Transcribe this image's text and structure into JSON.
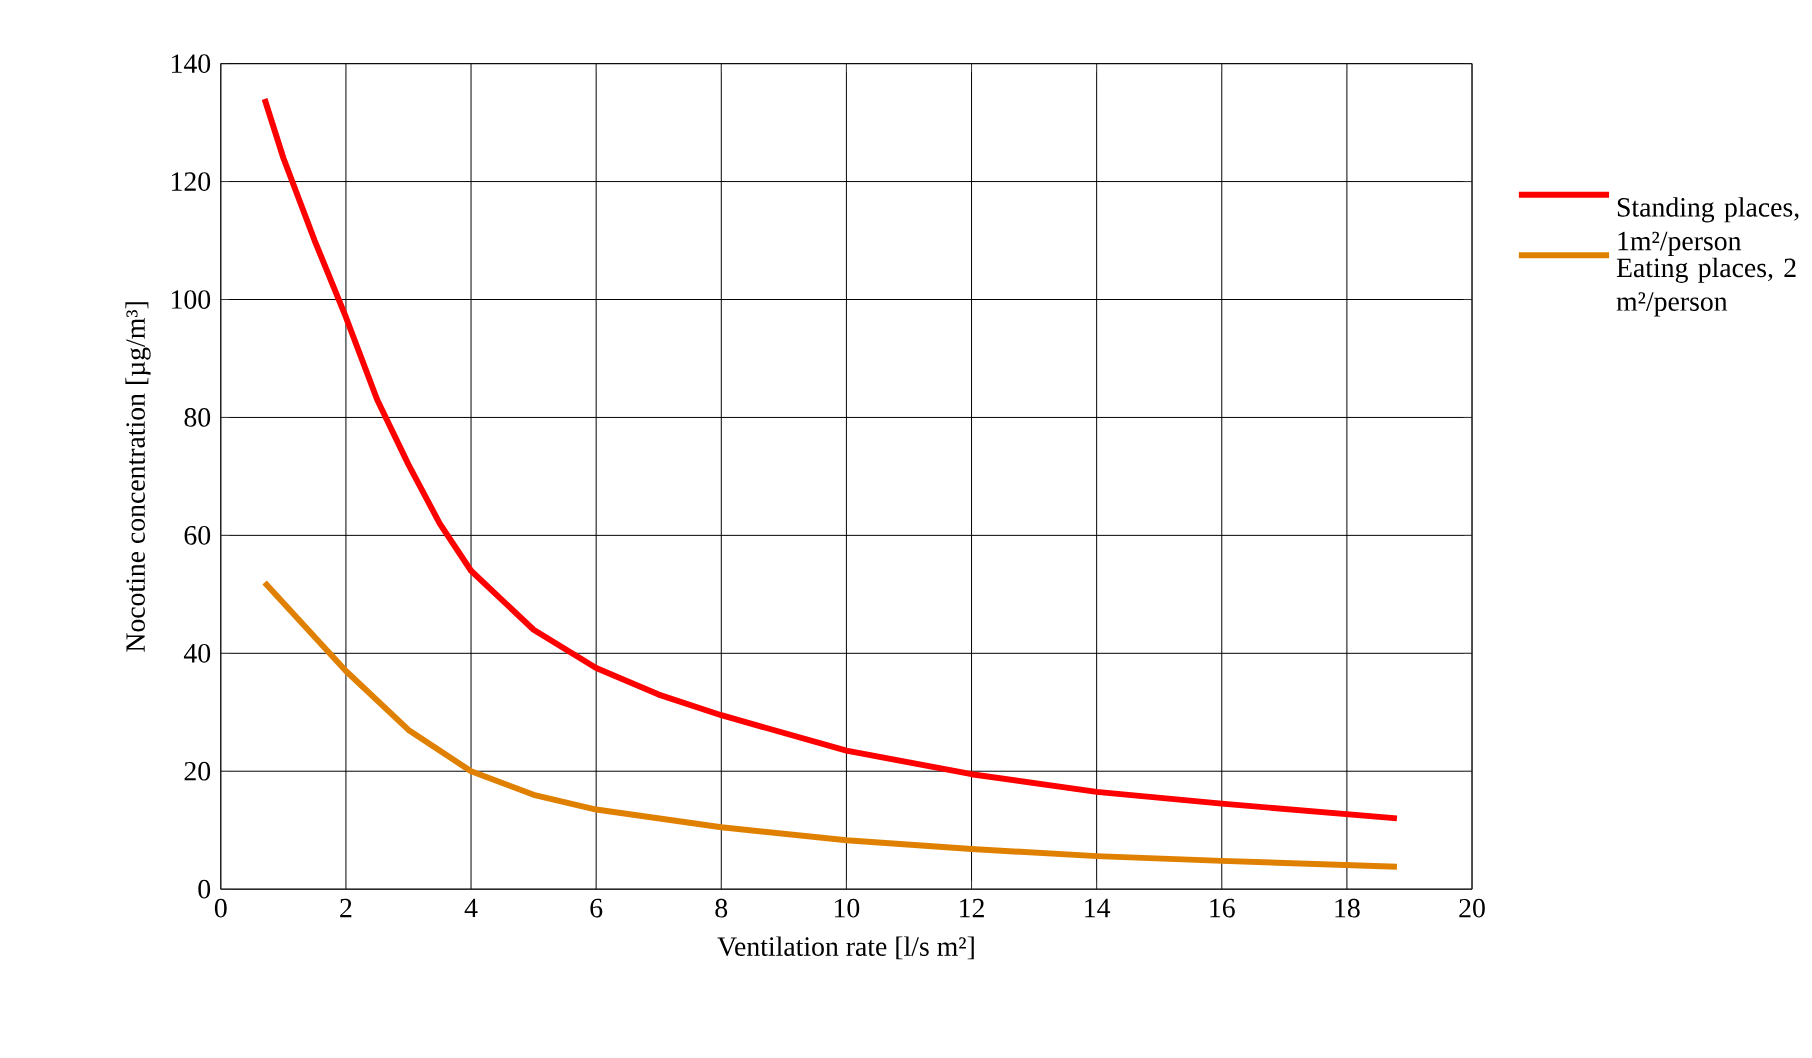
{
  "chart_data": {
    "type": "line",
    "xlabel": "Ventilation rate [l/s m²]",
    "ylabel": "Nocotine concentration [µg/m³]",
    "xlim": [
      0,
      20
    ],
    "ylim": [
      0,
      140
    ],
    "xticks": [
      0,
      2,
      4,
      6,
      8,
      10,
      12,
      14,
      16,
      18,
      20
    ],
    "yticks": [
      0,
      20,
      40,
      60,
      80,
      100,
      120,
      140
    ],
    "grid": true,
    "legend": "right",
    "marker": "none",
    "line_style": "solid",
    "series": [
      {
        "name": "Standing places, 1m²/person",
        "color": "#ff0000",
        "x": [
          0.7,
          1,
          1.5,
          2,
          2.5,
          3,
          3.5,
          4,
          5,
          6,
          7,
          8,
          10,
          12,
          14,
          16,
          18.8
        ],
        "values": [
          134,
          124,
          110,
          97,
          83,
          72,
          62,
          54,
          44,
          37.5,
          33,
          29.5,
          23.5,
          19.5,
          16.5,
          14.5,
          12
        ]
      },
      {
        "name": "Eating places, 2 m²/person",
        "color": "#e08000",
        "x": [
          0.7,
          2,
          3,
          4,
          5,
          6,
          8,
          10,
          12,
          14,
          16,
          18.8
        ],
        "values": [
          52,
          37,
          27,
          20,
          16,
          13.5,
          10.5,
          8.3,
          6.8,
          5.6,
          4.8,
          3.8
        ]
      }
    ]
  }
}
